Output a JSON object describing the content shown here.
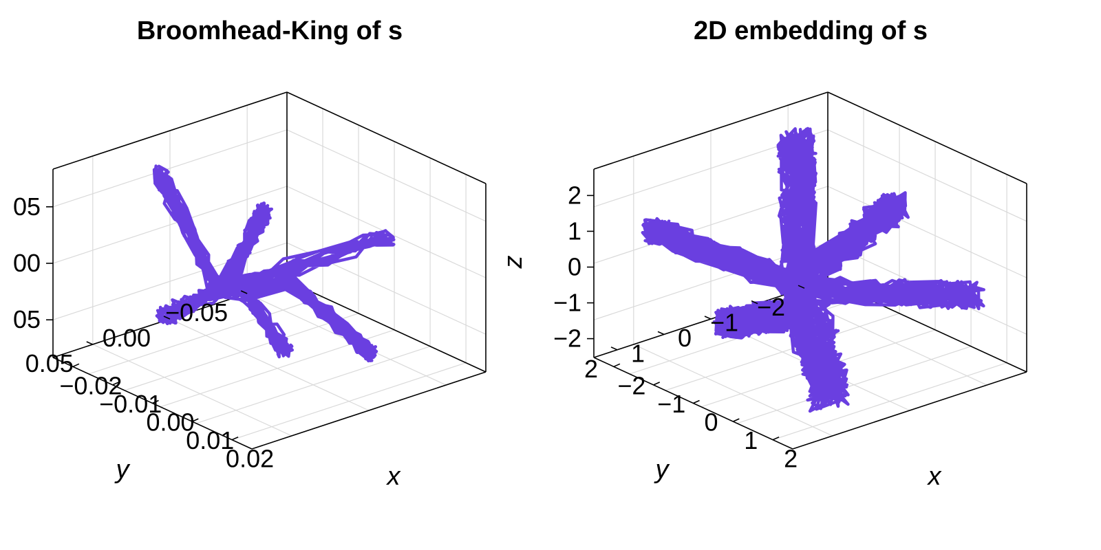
{
  "chart_data": [
    {
      "type": "line3d",
      "title": "Broomhead-King of s",
      "xlabel": "x",
      "ylabel": "y",
      "zlabel": "",
      "x_ticks": [
        "−0.02",
        "−0.01",
        "0.00",
        "0.01",
        "0.02"
      ],
      "y_ticks": [
        "0.05",
        "0.00",
        "−0.05"
      ],
      "z_ticks": [
        "05",
        "00",
        "05"
      ],
      "xlim": [
        -0.025,
        0.025
      ],
      "ylim": [
        -0.07,
        0.07
      ],
      "zlim": [
        -0.07,
        0.07
      ],
      "color": "#6a3fe0",
      "series_shape": "three-lobed trajectory (lobes along x, y and z)"
    },
    {
      "type": "line3d",
      "title": "2D embedding of s",
      "xlabel": "x",
      "ylabel": "y",
      "zlabel": "z",
      "x_ticks": [
        "−2",
        "−1",
        "0",
        "1",
        "2"
      ],
      "y_ticks": [
        "2",
        "1",
        "0",
        "−1",
        "−2"
      ],
      "z_ticks": [
        "2",
        "1",
        "0",
        "−1",
        "−2"
      ],
      "xlim": [
        -2.6,
        2.6
      ],
      "ylim": [
        -2.6,
        2.6
      ],
      "zlim": [
        -2.6,
        2.6
      ],
      "color": "#6a3fe0",
      "series_shape": "four-lobed trajectory (lobes along ±x, ±z)"
    }
  ]
}
